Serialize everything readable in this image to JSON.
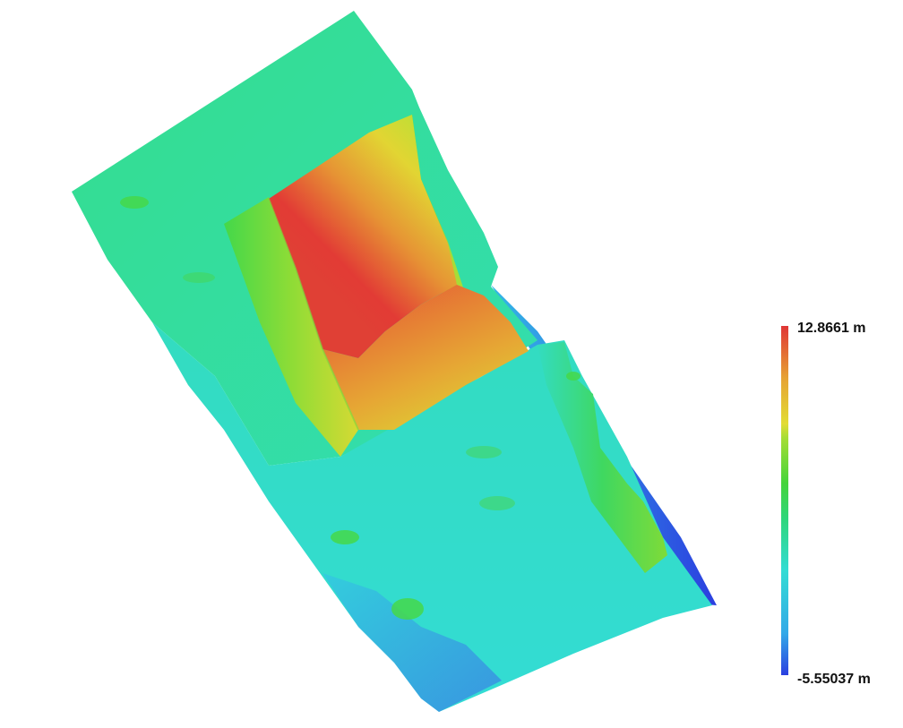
{
  "legend": {
    "max_label": "12.8661 m",
    "min_label": "-5.55037 m",
    "max_value": 12.8661,
    "min_value": -5.55037,
    "unit": "m",
    "colors": [
      "#2b3fe0",
      "#33a9e8",
      "#33dcd4",
      "#2fd67a",
      "#45d43a",
      "#a6dd35",
      "#e2dc33",
      "#e6a334",
      "#e84a35",
      "#e03535"
    ]
  },
  "map": {
    "colors": {
      "low": "#2b3fe0",
      "cyan": "#33dcd4",
      "green": "#34d98a",
      "bright_green": "#45d43a",
      "yellow": "#e2dc33",
      "orange": "#e6a334",
      "red": "#e03535"
    }
  }
}
